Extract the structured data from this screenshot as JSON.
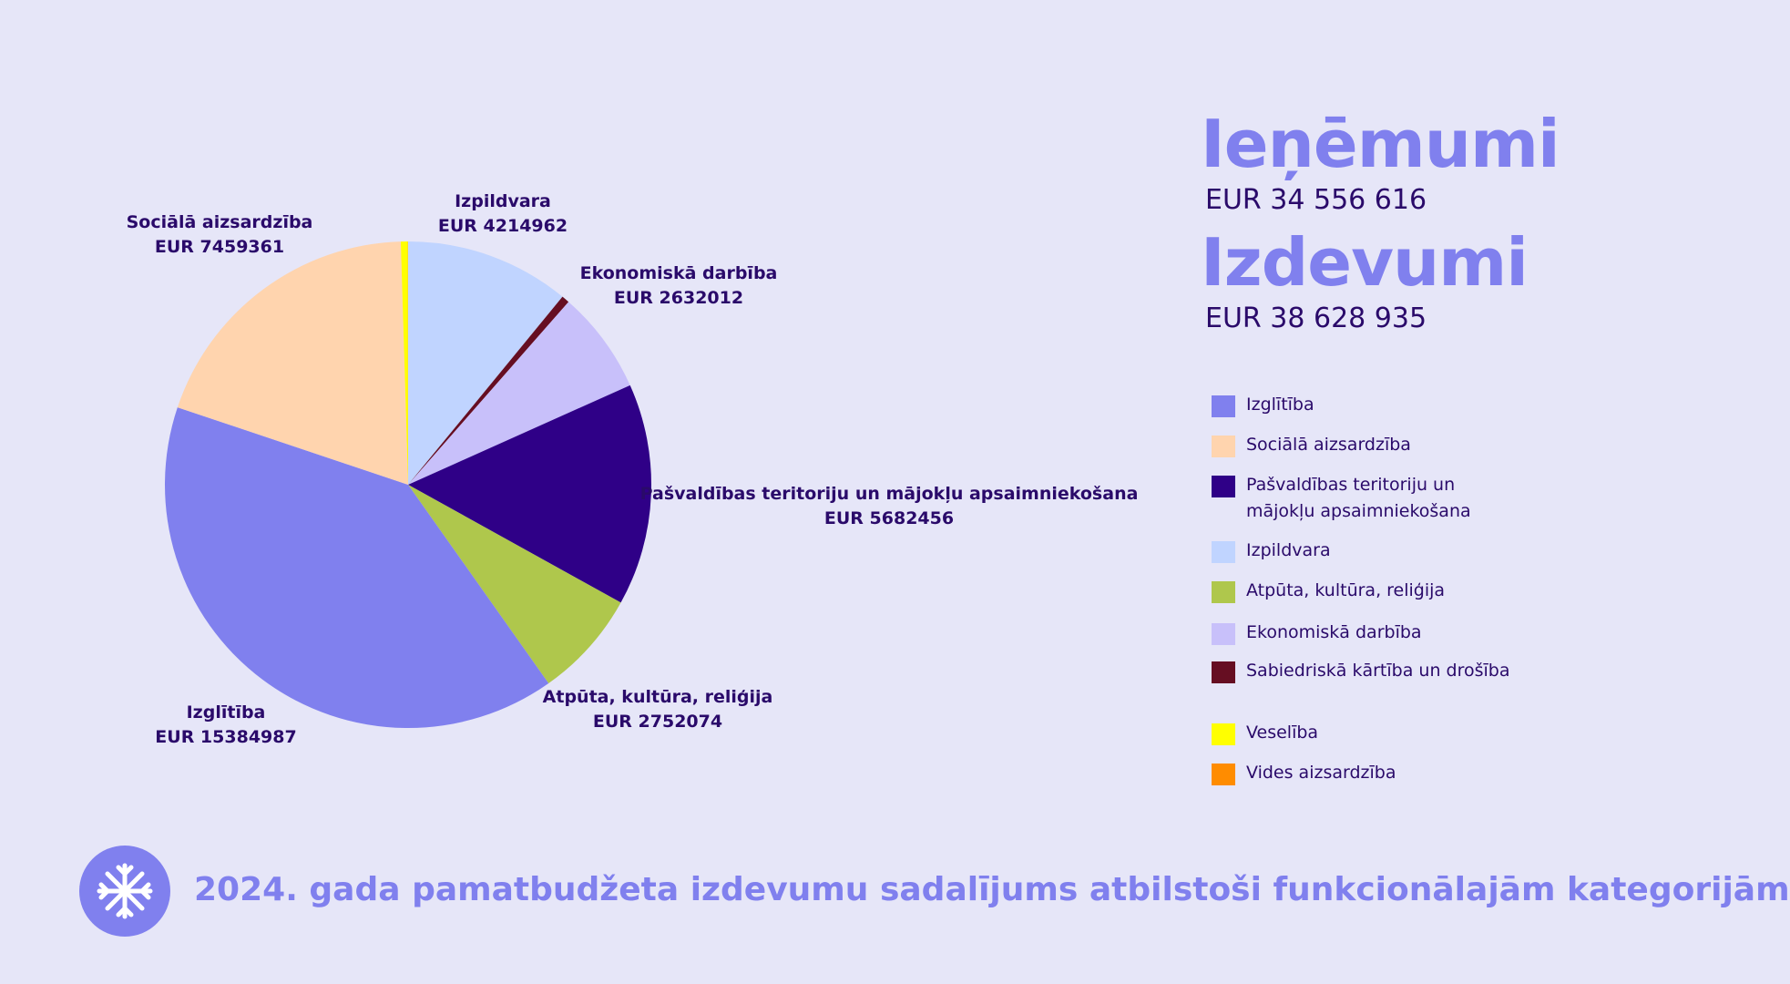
{
  "summary": {
    "income_title": "Ieņēmumi",
    "income_value": "EUR 34 556 616",
    "expense_title": "Izdevumi",
    "expense_value": "EUR 38 628 935"
  },
  "footer": {
    "logo_icon": "snowflake-icon",
    "text": "2024. gada pamatbudžeta izdevumu sadalījums atbilstoši funkcionālajām kategorijām"
  },
  "legend": [
    {
      "label": "Izglītība",
      "color": "#8080ee"
    },
    {
      "label": "Sociālā aizsardzība",
      "color": "#ffd4ae"
    },
    {
      "label": "Pašvaldības teritoriju un mājokļu apsaimniekošana",
      "color": "#2f0087"
    },
    {
      "label": "Izpildvara",
      "color": "#c0d4ff"
    },
    {
      "label": "Atpūta, kultūra, reliģija",
      "color": "#afc74c"
    },
    {
      "label": "Ekonomiskā darbība",
      "color": "#c8c0fa"
    },
    {
      "label": "Sabiedriskā kārtība un drošība",
      "color": "#660e22"
    },
    {
      "label": "Veselība",
      "color": "#ffff00"
    },
    {
      "label": "Vides aizsardzība",
      "color": "#ff8c00"
    }
  ],
  "chart_data": {
    "type": "pie",
    "start_angle_deg": 0,
    "direction": "clockwise",
    "slices": [
      {
        "name": "Izpildvara",
        "value": 4214962,
        "label_lines": [
          "Izpildvara",
          "EUR 4214962"
        ],
        "color": "#c0d4ff"
      },
      {
        "name": "Sabiedriskā kārtība un drošība",
        "value": 200000,
        "label_lines": [],
        "color": "#660e22"
      },
      {
        "name": "Ekonomiskā darbība",
        "value": 2632012,
        "label_lines": [
          "Ekonomiskā darbība",
          "EUR 2632012"
        ],
        "color": "#c8c0fa"
      },
      {
        "name": "Pašvaldības teritoriju un mājokļu apsaimniekošana",
        "value": 5682456,
        "label_lines": [
          "Pašvaldības teritoriju un mājokļu apsaimniekošana",
          "EUR 5682456"
        ],
        "color": "#2f0087"
      },
      {
        "name": "Atpūta, kultūra, reliģija",
        "value": 2752074,
        "label_lines": [
          "Atpūta, kultūra, reliģija",
          "EUR 2752074"
        ],
        "color": "#afc74c"
      },
      {
        "name": "Izglītība",
        "value": 15384987,
        "label_lines": [
          "Izglītība",
          "EUR 15384987"
        ],
        "color": "#8080ee"
      },
      {
        "name": "Sociālā aizsardzība",
        "value": 7459361,
        "label_lines": [
          "Sociālā aizsardzība",
          "EUR 7459361"
        ],
        "color": "#ffd4ae"
      },
      {
        "name": "Veselība",
        "value": 180000,
        "label_lines": [],
        "color": "#ffff00"
      },
      {
        "name": "Vides aizsardzība",
        "value": 5000,
        "label_lines": [],
        "color": "#ff8c00"
      }
    ]
  }
}
